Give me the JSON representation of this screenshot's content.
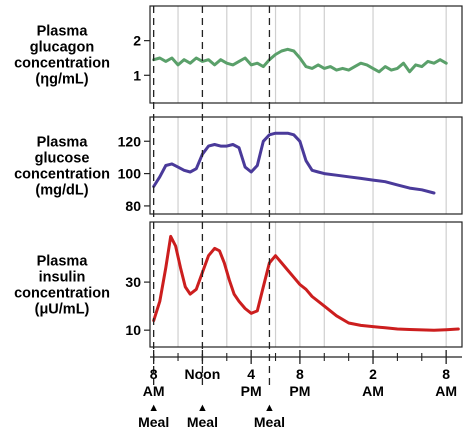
{
  "chart_data": [
    {
      "type": "line",
      "ylabel_lines": [
        "Plasma",
        "glucagon",
        "concentration",
        "(ηg/mL)"
      ],
      "yticks": [
        1,
        2
      ],
      "ylim": [
        0.2,
        3.0
      ],
      "color": "#5aa06a",
      "series": [
        {
          "x": [
            0,
            0.5,
            1,
            1.5,
            2,
            2.5,
            3,
            3.5,
            4,
            4.5,
            5,
            5.5,
            6,
            6.5,
            7,
            7.5,
            8,
            8.5,
            9,
            9.5,
            10,
            10.5,
            11,
            11.5,
            12,
            12.5,
            13,
            13.5,
            14,
            14.5,
            15,
            15.5,
            16,
            16.5,
            17,
            17.5,
            18,
            18.5,
            19,
            19.5,
            20,
            20.5,
            21,
            21.5,
            22,
            22.5,
            23,
            23.5,
            24
          ],
          "y": [
            1.45,
            1.5,
            1.4,
            1.5,
            1.3,
            1.45,
            1.35,
            1.5,
            1.4,
            1.45,
            1.3,
            1.45,
            1.35,
            1.3,
            1.4,
            1.5,
            1.3,
            1.35,
            1.25,
            1.45,
            1.6,
            1.7,
            1.75,
            1.7,
            1.5,
            1.25,
            1.2,
            1.3,
            1.2,
            1.25,
            1.15,
            1.2,
            1.15,
            1.25,
            1.35,
            1.3,
            1.2,
            1.1,
            1.25,
            1.15,
            1.2,
            1.35,
            1.1,
            1.3,
            1.25,
            1.4,
            1.35,
            1.45,
            1.35
          ]
        }
      ]
    },
    {
      "type": "line",
      "ylabel_lines": [
        "Plasma",
        "glucose",
        "concentration",
        "(mg/dL)"
      ],
      "yticks": [
        80,
        100,
        120
      ],
      "ylim": [
        75,
        135
      ],
      "color": "#4a3a9a",
      "series": [
        {
          "x": [
            0,
            0.5,
            1,
            1.5,
            2,
            2.5,
            3,
            3.5,
            4,
            4.5,
            5,
            5.5,
            6,
            6.5,
            7,
            7.5,
            8,
            8.5,
            9,
            9.5,
            10,
            10.5,
            11,
            11.5,
            12,
            12.5,
            13,
            13.5,
            14,
            15,
            16,
            17,
            18,
            19,
            20,
            21,
            22,
            23
          ],
          "y": [
            92,
            98,
            105,
            106,
            104,
            102,
            101,
            103,
            112,
            117,
            118,
            117,
            117,
            118,
            116,
            104,
            101,
            105,
            120,
            124,
            125,
            125,
            125,
            124,
            120,
            108,
            102,
            101,
            100,
            99,
            98,
            97,
            96,
            95,
            93,
            91,
            90,
            88
          ]
        }
      ]
    },
    {
      "type": "line",
      "ylabel_lines": [
        "Plasma",
        "insulin",
        "concentration",
        "(μU/mL)"
      ],
      "yticks": [
        10,
        30
      ],
      "ylim": [
        3,
        55
      ],
      "color": "#cc1e1e",
      "series": [
        {
          "x": [
            0,
            0.5,
            1,
            1.4,
            1.8,
            2.2,
            2.6,
            3,
            3.5,
            4,
            4.5,
            5,
            5.4,
            5.8,
            6.2,
            6.6,
            7,
            7.5,
            8,
            8.5,
            9,
            9.5,
            10,
            10.5,
            11,
            11.5,
            12,
            12.5,
            13,
            14,
            15,
            16,
            17,
            18,
            19,
            20,
            21,
            22,
            23,
            24,
            25
          ],
          "y": [
            14,
            22,
            36,
            49,
            45,
            36,
            28,
            25,
            27,
            34,
            41,
            44,
            43,
            38,
            31,
            25,
            22,
            19,
            17,
            18,
            28,
            38,
            41,
            38,
            35,
            32,
            29,
            27,
            24,
            20,
            16,
            13,
            12,
            11.5,
            11,
            10.5,
            10.3,
            10.1,
            10,
            10.2,
            10.5
          ]
        }
      ]
    }
  ],
  "x_axis": {
    "xlim": [
      -0.3,
      25.3
    ],
    "ticks": [
      {
        "x": 0,
        "lines": [
          "8",
          "AM"
        ]
      },
      {
        "x": 4,
        "lines": [
          "Noon"
        ]
      },
      {
        "x": 8,
        "lines": [
          "4",
          "PM"
        ]
      },
      {
        "x": 12,
        "lines": [
          "8",
          "PM"
        ]
      },
      {
        "x": 18,
        "lines": [
          "2",
          "AM"
        ]
      },
      {
        "x": 24,
        "lines": [
          "8",
          "AM"
        ]
      }
    ],
    "minor_ticks": [
      2,
      6,
      10,
      14,
      16,
      20,
      22
    ]
  },
  "gridlines_x": [
    2,
    6,
    8,
    10,
    12,
    14,
    18,
    24
  ],
  "meal_times": [
    0,
    4,
    9.5
  ],
  "meal_label": "Meal",
  "meal_marker": "▲"
}
